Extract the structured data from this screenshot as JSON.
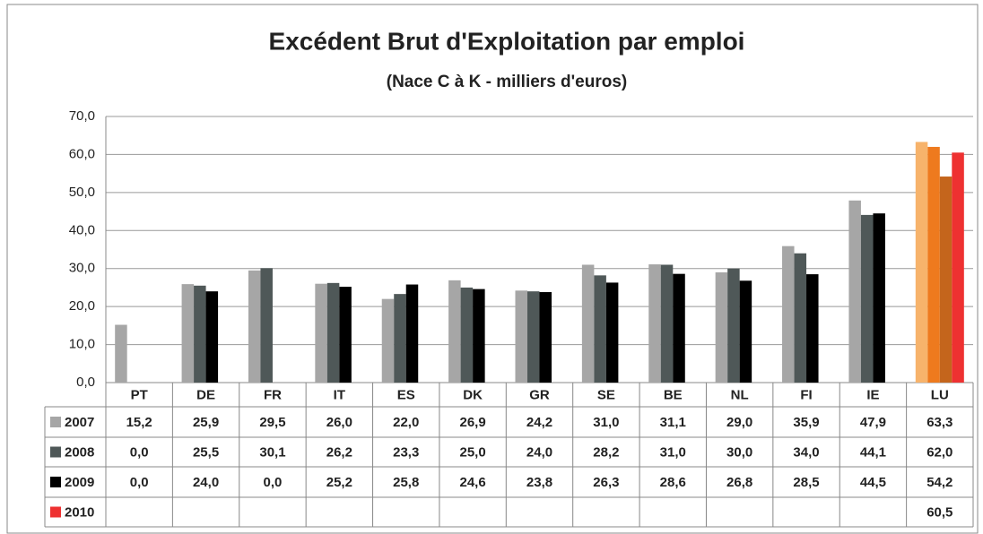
{
  "chart_data": {
    "type": "bar",
    "title": "Excédent Brut d'Exploitation par emploi",
    "subtitle": "(Nace C à K - milliers d'euros)",
    "categories": [
      "PT",
      "DE",
      "FR",
      "IT",
      "ES",
      "DK",
      "GR",
      "SE",
      "BE",
      "NL",
      "FI",
      "IE",
      "LU"
    ],
    "series": [
      {
        "name": "2007",
        "color": "#a6a6a6",
        "colors": [
          "#a6a6a6",
          "#a6a6a6",
          "#a6a6a6",
          "#a6a6a6",
          "#a6a6a6",
          "#a6a6a6",
          "#a6a6a6",
          "#a6a6a6",
          "#a6a6a6",
          "#a6a6a6",
          "#a6a6a6",
          "#a6a6a6",
          "#f7b36b"
        ],
        "values": [
          15.2,
          25.9,
          29.5,
          26.0,
          22.0,
          26.9,
          24.2,
          31.0,
          31.1,
          29.0,
          35.9,
          47.9,
          63.3
        ],
        "value_labels": [
          "15,2",
          "25,9",
          "29,5",
          "26,0",
          "22,0",
          "26,9",
          "24,2",
          "31,0",
          "31,1",
          "29,0",
          "35,9",
          "47,9",
          "63,3"
        ]
      },
      {
        "name": "2008",
        "color": "#4f5858",
        "colors": [
          "#4f5858",
          "#4f5858",
          "#4f5858",
          "#4f5858",
          "#4f5858",
          "#4f5858",
          "#4f5858",
          "#4f5858",
          "#4f5858",
          "#4f5858",
          "#4f5858",
          "#4f5858",
          "#ee7a1e"
        ],
        "values": [
          0.0,
          25.5,
          30.1,
          26.2,
          23.3,
          25.0,
          24.0,
          28.2,
          31.0,
          30.0,
          34.0,
          44.1,
          62.0
        ],
        "value_labels": [
          "0,0",
          "25,5",
          "30,1",
          "26,2",
          "23,3",
          "25,0",
          "24,0",
          "28,2",
          "31,0",
          "30,0",
          "34,0",
          "44,1",
          "62,0"
        ]
      },
      {
        "name": "2009",
        "color": "#000000",
        "colors": [
          "#000000",
          "#000000",
          "#000000",
          "#000000",
          "#000000",
          "#000000",
          "#000000",
          "#000000",
          "#000000",
          "#000000",
          "#000000",
          "#000000",
          "#c4651c"
        ],
        "values": [
          0.0,
          24.0,
          0.0,
          25.2,
          25.8,
          24.6,
          23.8,
          26.3,
          28.6,
          26.8,
          28.5,
          44.5,
          54.2
        ],
        "value_labels": [
          "0,0",
          "24,0",
          "0,0",
          "25,2",
          "25,8",
          "24,6",
          "23,8",
          "26,3",
          "28,6",
          "26,8",
          "28,5",
          "44,5",
          "54,2"
        ]
      },
      {
        "name": "2010",
        "color": "#ee3131",
        "colors": [
          "#ee3131",
          "#ee3131",
          "#ee3131",
          "#ee3131",
          "#ee3131",
          "#ee3131",
          "#ee3131",
          "#ee3131",
          "#ee3131",
          "#ee3131",
          "#ee3131",
          "#ee3131",
          "#ee3131"
        ],
        "values": [
          null,
          null,
          null,
          null,
          null,
          null,
          null,
          null,
          null,
          null,
          null,
          null,
          60.5
        ],
        "value_labels": [
          null,
          null,
          null,
          null,
          null,
          null,
          null,
          null,
          null,
          null,
          null,
          null,
          "60,5"
        ]
      }
    ],
    "ylim": [
      0,
      70
    ],
    "yticks": [
      {
        "value": 0,
        "label": "0,0"
      },
      {
        "value": 10,
        "label": "10,0"
      },
      {
        "value": 20,
        "label": "20,0"
      },
      {
        "value": 30,
        "label": "30,0"
      },
      {
        "value": 40,
        "label": "40,0"
      },
      {
        "value": 50,
        "label": "50,0"
      },
      {
        "value": 60,
        "label": "60,0"
      },
      {
        "value": 70,
        "label": "70,0"
      }
    ],
    "grid": true
  }
}
